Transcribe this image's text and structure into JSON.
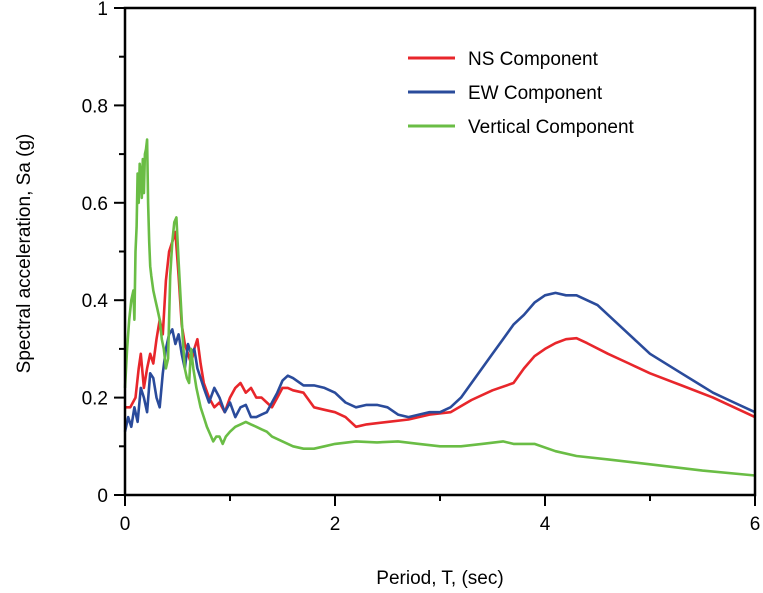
{
  "chart_data": {
    "type": "line",
    "xlabel": "Period, T, (sec)",
    "ylabel": "Spectral acceleration, Sa (g)",
    "xlim": [
      0,
      6
    ],
    "ylim": [
      0,
      1
    ],
    "x_ticks": [
      "0",
      "2",
      "4",
      "6"
    ],
    "y_ticks": [
      "0",
      "0.2",
      "0.4",
      "0.6",
      "0.8",
      "1"
    ],
    "grid": false,
    "legend_position": "top-right",
    "series": [
      {
        "name": "NS Component",
        "color": "#e8262b",
        "points": [
          [
            0,
            0.18
          ],
          [
            0.05,
            0.18
          ],
          [
            0.1,
            0.2
          ],
          [
            0.13,
            0.26
          ],
          [
            0.15,
            0.29
          ],
          [
            0.18,
            0.22
          ],
          [
            0.21,
            0.26
          ],
          [
            0.24,
            0.29
          ],
          [
            0.27,
            0.27
          ],
          [
            0.3,
            0.32
          ],
          [
            0.33,
            0.36
          ],
          [
            0.36,
            0.33
          ],
          [
            0.39,
            0.44
          ],
          [
            0.42,
            0.5
          ],
          [
            0.45,
            0.52
          ],
          [
            0.48,
            0.54
          ],
          [
            0.51,
            0.45
          ],
          [
            0.54,
            0.35
          ],
          [
            0.57,
            0.31
          ],
          [
            0.6,
            0.29
          ],
          [
            0.63,
            0.27
          ],
          [
            0.66,
            0.3
          ],
          [
            0.69,
            0.32
          ],
          [
            0.72,
            0.27
          ],
          [
            0.75,
            0.23
          ],
          [
            0.8,
            0.2
          ],
          [
            0.85,
            0.18
          ],
          [
            0.9,
            0.19
          ],
          [
            0.95,
            0.17
          ],
          [
            1.0,
            0.2
          ],
          [
            1.05,
            0.22
          ],
          [
            1.1,
            0.23
          ],
          [
            1.15,
            0.21
          ],
          [
            1.2,
            0.22
          ],
          [
            1.25,
            0.2
          ],
          [
            1.3,
            0.2
          ],
          [
            1.35,
            0.19
          ],
          [
            1.4,
            0.18
          ],
          [
            1.45,
            0.2
          ],
          [
            1.5,
            0.22
          ],
          [
            1.55,
            0.22
          ],
          [
            1.6,
            0.215
          ],
          [
            1.7,
            0.21
          ],
          [
            1.8,
            0.18
          ],
          [
            1.9,
            0.175
          ],
          [
            2.0,
            0.17
          ],
          [
            2.1,
            0.16
          ],
          [
            2.2,
            0.14
          ],
          [
            2.3,
            0.145
          ],
          [
            2.5,
            0.15
          ],
          [
            2.7,
            0.155
          ],
          [
            2.9,
            0.165
          ],
          [
            3.1,
            0.17
          ],
          [
            3.3,
            0.195
          ],
          [
            3.5,
            0.215
          ],
          [
            3.7,
            0.23
          ],
          [
            3.8,
            0.26
          ],
          [
            3.9,
            0.285
          ],
          [
            4.0,
            0.3
          ],
          [
            4.1,
            0.312
          ],
          [
            4.2,
            0.32
          ],
          [
            4.3,
            0.322
          ],
          [
            4.4,
            0.312
          ],
          [
            4.6,
            0.29
          ],
          [
            4.8,
            0.27
          ],
          [
            5.0,
            0.25
          ],
          [
            5.3,
            0.225
          ],
          [
            5.6,
            0.2
          ],
          [
            5.8,
            0.18
          ],
          [
            6.0,
            0.16
          ]
        ]
      },
      {
        "name": "EW Component",
        "color": "#2a4b9b",
        "points": [
          [
            0,
            0.13
          ],
          [
            0.03,
            0.16
          ],
          [
            0.06,
            0.14
          ],
          [
            0.09,
            0.18
          ],
          [
            0.12,
            0.15
          ],
          [
            0.15,
            0.22
          ],
          [
            0.18,
            0.2
          ],
          [
            0.21,
            0.17
          ],
          [
            0.24,
            0.25
          ],
          [
            0.27,
            0.24
          ],
          [
            0.3,
            0.2
          ],
          [
            0.33,
            0.18
          ],
          [
            0.36,
            0.25
          ],
          [
            0.39,
            0.3
          ],
          [
            0.42,
            0.33
          ],
          [
            0.45,
            0.34
          ],
          [
            0.48,
            0.31
          ],
          [
            0.51,
            0.33
          ],
          [
            0.54,
            0.29
          ],
          [
            0.57,
            0.26
          ],
          [
            0.6,
            0.31
          ],
          [
            0.63,
            0.29
          ],
          [
            0.66,
            0.3
          ],
          [
            0.69,
            0.26
          ],
          [
            0.72,
            0.24
          ],
          [
            0.75,
            0.22
          ],
          [
            0.8,
            0.19
          ],
          [
            0.85,
            0.22
          ],
          [
            0.9,
            0.2
          ],
          [
            0.95,
            0.17
          ],
          [
            1.0,
            0.19
          ],
          [
            1.05,
            0.16
          ],
          [
            1.1,
            0.18
          ],
          [
            1.15,
            0.185
          ],
          [
            1.2,
            0.16
          ],
          [
            1.25,
            0.16
          ],
          [
            1.3,
            0.165
          ],
          [
            1.35,
            0.17
          ],
          [
            1.4,
            0.19
          ],
          [
            1.45,
            0.21
          ],
          [
            1.5,
            0.235
          ],
          [
            1.55,
            0.245
          ],
          [
            1.6,
            0.24
          ],
          [
            1.7,
            0.225
          ],
          [
            1.8,
            0.225
          ],
          [
            1.9,
            0.22
          ],
          [
            2.0,
            0.21
          ],
          [
            2.1,
            0.19
          ],
          [
            2.2,
            0.18
          ],
          [
            2.3,
            0.185
          ],
          [
            2.4,
            0.185
          ],
          [
            2.5,
            0.18
          ],
          [
            2.6,
            0.165
          ],
          [
            2.7,
            0.16
          ],
          [
            2.8,
            0.165
          ],
          [
            2.9,
            0.17
          ],
          [
            3.0,
            0.17
          ],
          [
            3.1,
            0.18
          ],
          [
            3.2,
            0.2
          ],
          [
            3.3,
            0.23
          ],
          [
            3.4,
            0.26
          ],
          [
            3.5,
            0.29
          ],
          [
            3.6,
            0.32
          ],
          [
            3.7,
            0.35
          ],
          [
            3.8,
            0.37
          ],
          [
            3.9,
            0.395
          ],
          [
            4.0,
            0.41
          ],
          [
            4.1,
            0.415
          ],
          [
            4.2,
            0.41
          ],
          [
            4.3,
            0.41
          ],
          [
            4.4,
            0.4
          ],
          [
            4.5,
            0.39
          ],
          [
            4.6,
            0.37
          ],
          [
            4.8,
            0.33
          ],
          [
            5.0,
            0.29
          ],
          [
            5.3,
            0.25
          ],
          [
            5.6,
            0.21
          ],
          [
            5.8,
            0.19
          ],
          [
            6.0,
            0.17
          ]
        ]
      },
      {
        "name": "Vertical Component",
        "color": "#6abd45",
        "points": [
          [
            0,
            0.22
          ],
          [
            0.02,
            0.3
          ],
          [
            0.04,
            0.36
          ],
          [
            0.06,
            0.4
          ],
          [
            0.08,
            0.42
          ],
          [
            0.09,
            0.36
          ],
          [
            0.1,
            0.5
          ],
          [
            0.11,
            0.55
          ],
          [
            0.12,
            0.66
          ],
          [
            0.13,
            0.6
          ],
          [
            0.14,
            0.68
          ],
          [
            0.15,
            0.66
          ],
          [
            0.16,
            0.61
          ],
          [
            0.17,
            0.69
          ],
          [
            0.18,
            0.62
          ],
          [
            0.19,
            0.7
          ],
          [
            0.2,
            0.71
          ],
          [
            0.21,
            0.73
          ],
          [
            0.22,
            0.6
          ],
          [
            0.23,
            0.52
          ],
          [
            0.24,
            0.47
          ],
          [
            0.25,
            0.45
          ],
          [
            0.27,
            0.42
          ],
          [
            0.29,
            0.4
          ],
          [
            0.31,
            0.38
          ],
          [
            0.33,
            0.36
          ],
          [
            0.35,
            0.32
          ],
          [
            0.37,
            0.3
          ],
          [
            0.39,
            0.26
          ],
          [
            0.41,
            0.28
          ],
          [
            0.43,
            0.45
          ],
          [
            0.45,
            0.52
          ],
          [
            0.47,
            0.56
          ],
          [
            0.49,
            0.57
          ],
          [
            0.51,
            0.48
          ],
          [
            0.53,
            0.4
          ],
          [
            0.55,
            0.32
          ],
          [
            0.57,
            0.26
          ],
          [
            0.59,
            0.24
          ],
          [
            0.61,
            0.23
          ],
          [
            0.63,
            0.3
          ],
          [
            0.65,
            0.26
          ],
          [
            0.68,
            0.22
          ],
          [
            0.7,
            0.2
          ],
          [
            0.72,
            0.18
          ],
          [
            0.75,
            0.16
          ],
          [
            0.78,
            0.14
          ],
          [
            0.81,
            0.125
          ],
          [
            0.84,
            0.11
          ],
          [
            0.87,
            0.12
          ],
          [
            0.9,
            0.12
          ],
          [
            0.93,
            0.105
          ],
          [
            0.96,
            0.12
          ],
          [
            1.0,
            0.13
          ],
          [
            1.05,
            0.14
          ],
          [
            1.1,
            0.145
          ],
          [
            1.15,
            0.15
          ],
          [
            1.2,
            0.145
          ],
          [
            1.25,
            0.14
          ],
          [
            1.3,
            0.135
          ],
          [
            1.35,
            0.13
          ],
          [
            1.4,
            0.12
          ],
          [
            1.5,
            0.11
          ],
          [
            1.6,
            0.1
          ],
          [
            1.7,
            0.095
          ],
          [
            1.8,
            0.095
          ],
          [
            1.9,
            0.1
          ],
          [
            2.0,
            0.105
          ],
          [
            2.2,
            0.11
          ],
          [
            2.4,
            0.108
          ],
          [
            2.6,
            0.11
          ],
          [
            2.8,
            0.105
          ],
          [
            3.0,
            0.1
          ],
          [
            3.2,
            0.1
          ],
          [
            3.4,
            0.105
          ],
          [
            3.6,
            0.11
          ],
          [
            3.7,
            0.105
          ],
          [
            3.9,
            0.105
          ],
          [
            4.1,
            0.09
          ],
          [
            4.3,
            0.08
          ],
          [
            4.6,
            0.073
          ],
          [
            5.0,
            0.063
          ],
          [
            5.5,
            0.05
          ],
          [
            6.0,
            0.04
          ]
        ]
      }
    ]
  }
}
